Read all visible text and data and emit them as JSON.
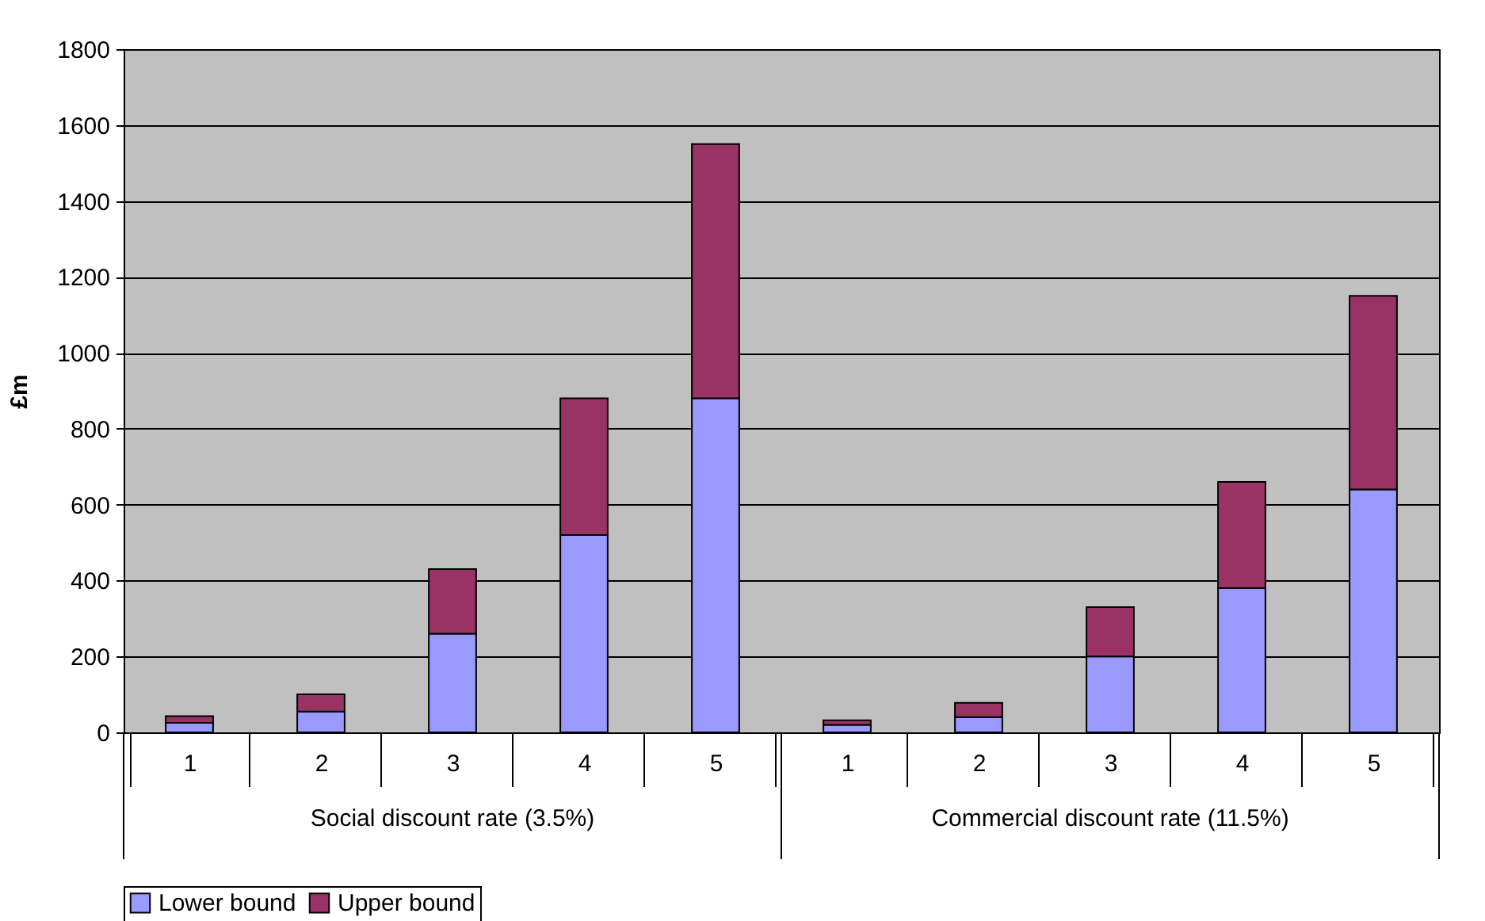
{
  "chart_data": {
    "type": "bar",
    "stacked": true,
    "ylabel": "£m",
    "categories": [
      "1",
      "2",
      "3",
      "4",
      "5",
      "1",
      "2",
      "3",
      "4",
      "5"
    ],
    "series": [
      {
        "name": "Lower bound",
        "color": "#9999ff",
        "values": [
          25,
          55,
          260,
          520,
          880,
          20,
          40,
          200,
          380,
          640
        ]
      },
      {
        "name": "Upper bound",
        "color": "#993366",
        "values": [
          18,
          45,
          170,
          360,
          670,
          12,
          38,
          130,
          280,
          510
        ]
      }
    ],
    "annotations": [
      "Social discount rate (3.5%)",
      "Commercial discount rate (11.5%)"
    ],
    "ylim": [
      0,
      1800
    ],
    "yticks": [
      0,
      200,
      400,
      600,
      800,
      1000,
      1200,
      1400,
      1600,
      1800
    ],
    "grid": "y",
    "legend": "bottom"
  }
}
